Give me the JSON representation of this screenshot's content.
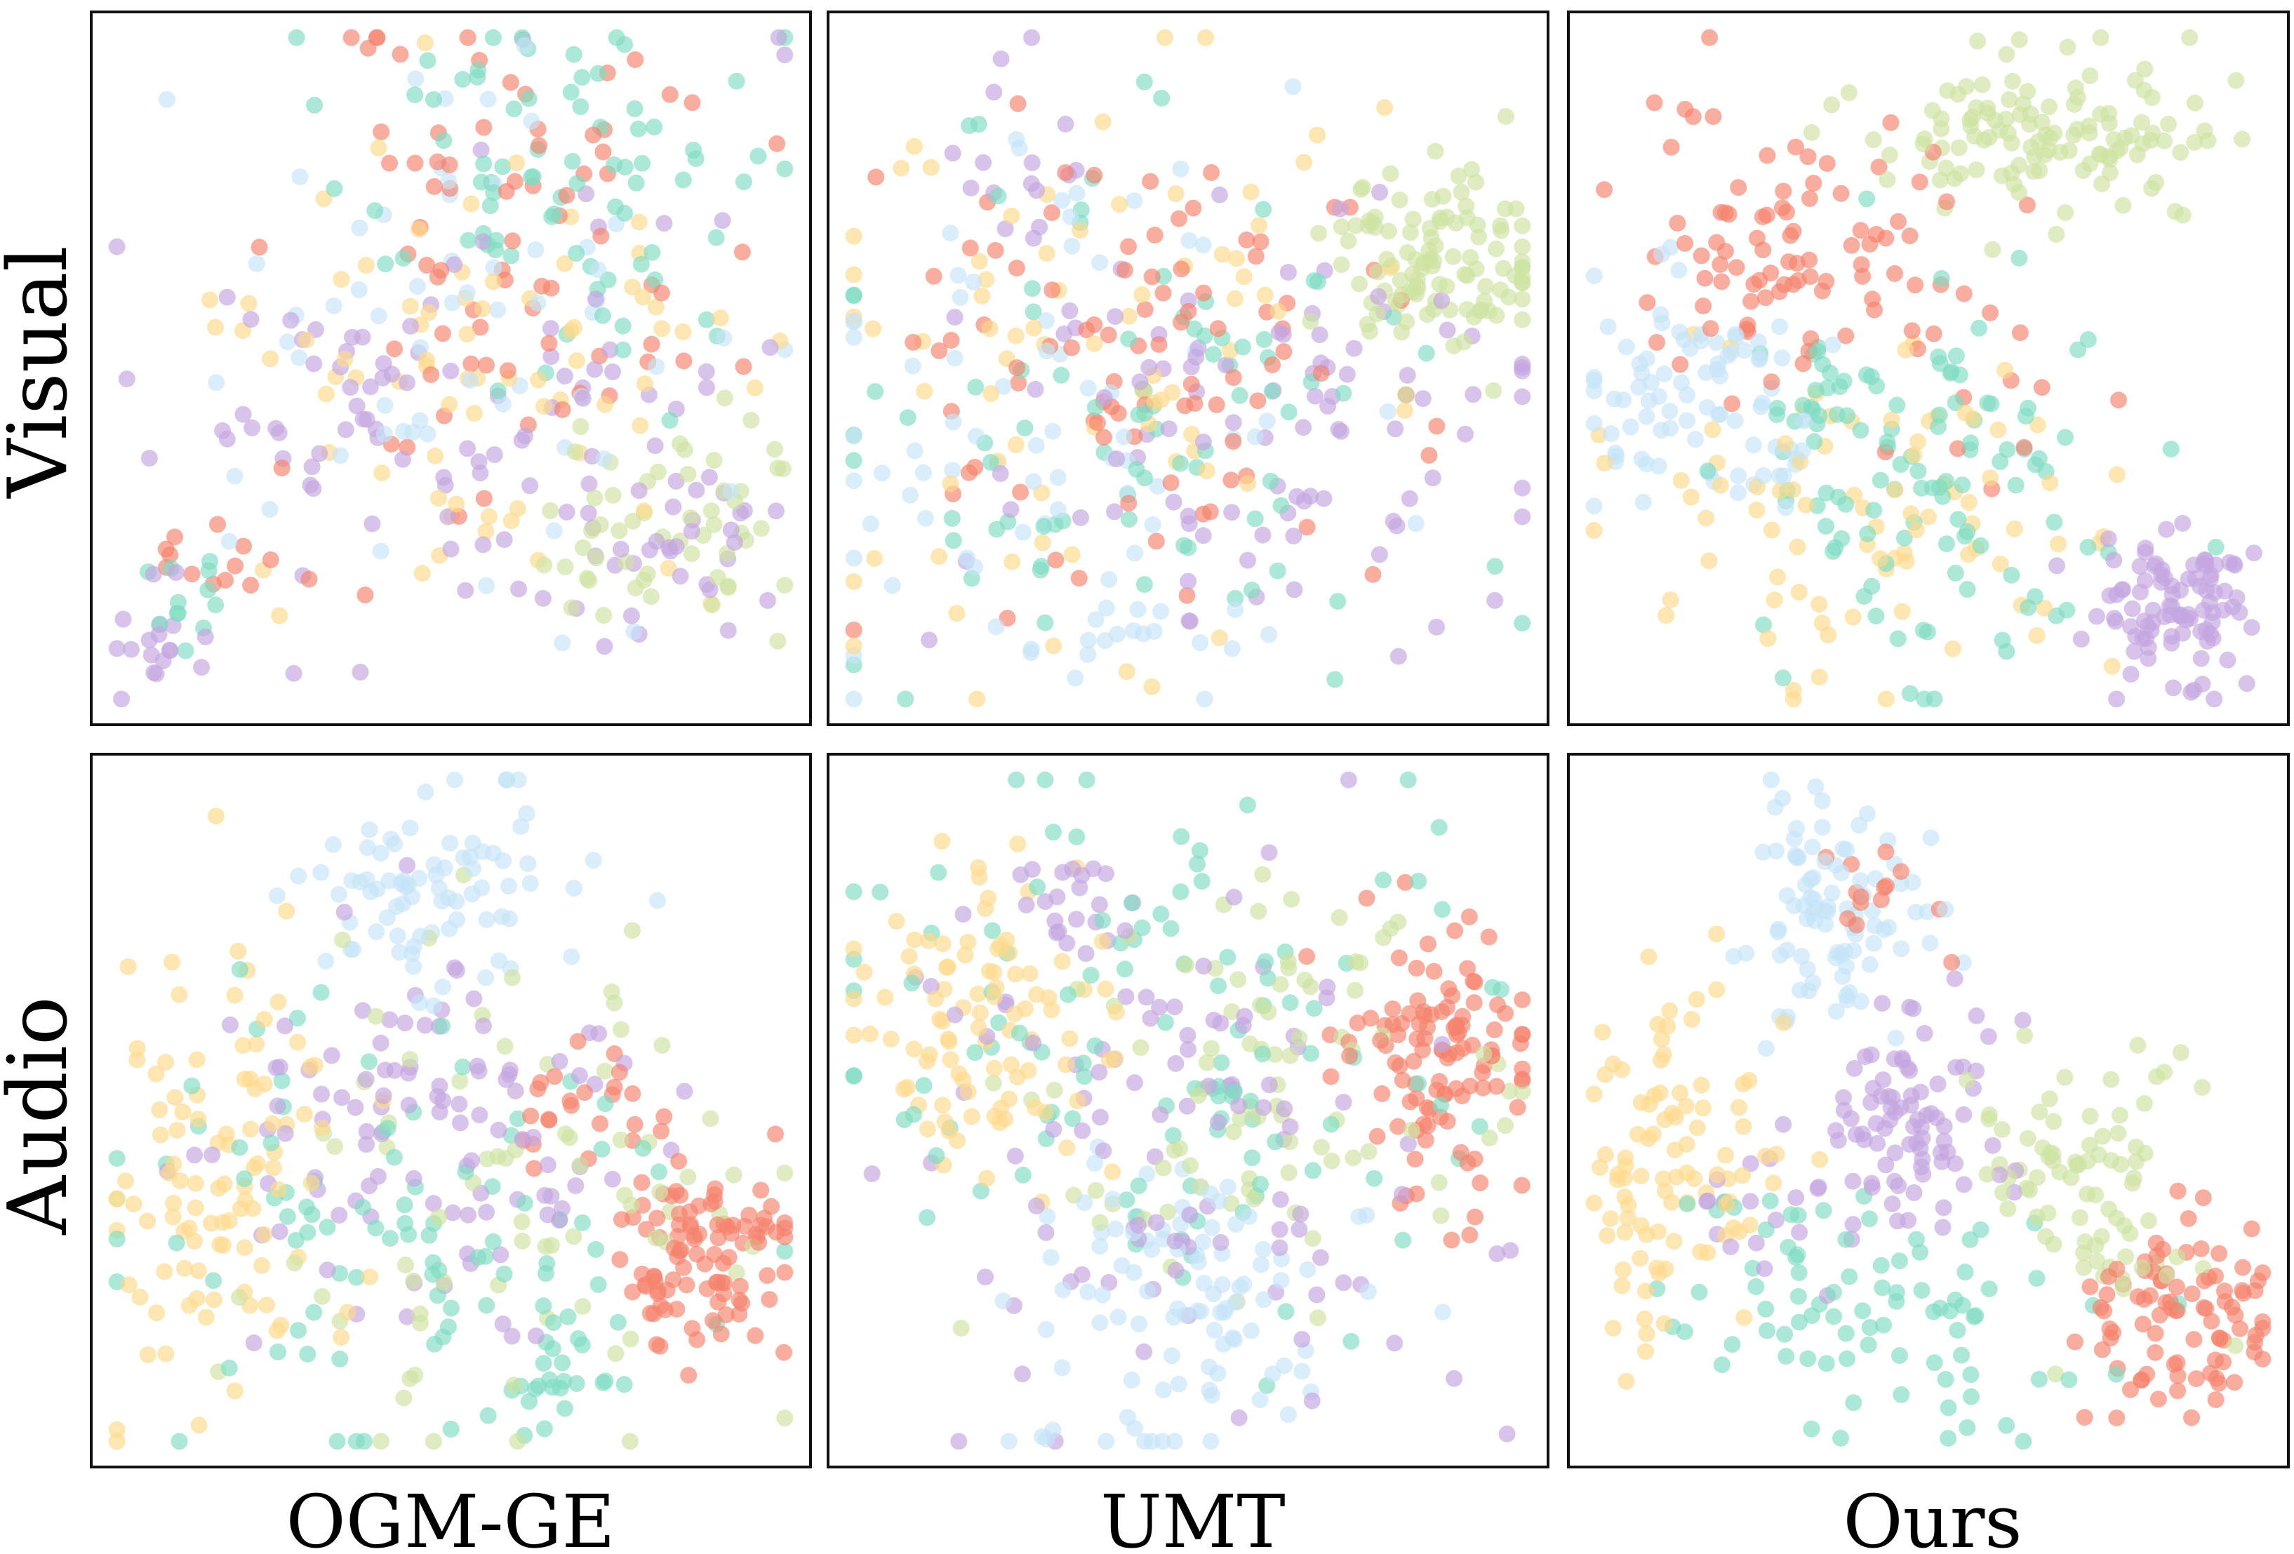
{
  "figure": {
    "row_labels": [
      "Visual",
      "Audio"
    ],
    "column_labels": [
      "OGM-GE",
      "UMT",
      "Ours"
    ]
  },
  "chart_data": {
    "type": "scatter",
    "xlim": [
      0,
      1
    ],
    "ylim": [
      0,
      1
    ],
    "grid": false,
    "legend": "none",
    "palette": {
      "red": "#f4826e",
      "green": "#cfe2a1",
      "teal": "#7fdcc2",
      "purple": "#c4a5e0",
      "yellow": "#fdd98a",
      "blue": "#c5e3f7"
    },
    "panels": [
      {
        "row": "Visual",
        "column": "OGM-GE",
        "seed": 11,
        "clusters": [
          {
            "color": "red",
            "cx": 0.6,
            "cy": 0.68,
            "sx": 0.16,
            "sy": 0.18,
            "n": 75
          },
          {
            "color": "green",
            "cx": 0.8,
            "cy": 0.26,
            "sx": 0.08,
            "sy": 0.08,
            "n": 55
          },
          {
            "color": "teal",
            "cx": 0.65,
            "cy": 0.78,
            "sx": 0.14,
            "sy": 0.14,
            "n": 80
          },
          {
            "color": "purple",
            "cx": 0.52,
            "cy": 0.42,
            "sx": 0.22,
            "sy": 0.18,
            "n": 95
          },
          {
            "color": "yellow",
            "cx": 0.52,
            "cy": 0.5,
            "sx": 0.18,
            "sy": 0.16,
            "n": 75
          },
          {
            "color": "blue",
            "cx": 0.5,
            "cy": 0.62,
            "sx": 0.2,
            "sy": 0.2,
            "n": 60
          }
        ],
        "extra": [
          {
            "color": "purple",
            "cx": 0.08,
            "cy": 0.1,
            "sx": 0.04,
            "sy": 0.05,
            "n": 18
          },
          {
            "color": "teal",
            "cx": 0.12,
            "cy": 0.18,
            "sx": 0.05,
            "sy": 0.05,
            "n": 12
          },
          {
            "color": "red",
            "cx": 0.18,
            "cy": 0.25,
            "sx": 0.06,
            "sy": 0.06,
            "n": 14
          },
          {
            "color": "purple",
            "cx": 0.82,
            "cy": 0.24,
            "sx": 0.08,
            "sy": 0.07,
            "n": 30
          }
        ]
      },
      {
        "row": "Visual",
        "column": "UMT",
        "seed": 23,
        "clusters": [
          {
            "color": "red",
            "cx": 0.42,
            "cy": 0.52,
            "sx": 0.2,
            "sy": 0.18,
            "n": 90
          },
          {
            "color": "green",
            "cx": 0.86,
            "cy": 0.64,
            "sx": 0.08,
            "sy": 0.07,
            "n": 110
          },
          {
            "color": "teal",
            "cx": 0.4,
            "cy": 0.45,
            "sx": 0.2,
            "sy": 0.2,
            "n": 85
          },
          {
            "color": "purple",
            "cx": 0.6,
            "cy": 0.38,
            "sx": 0.2,
            "sy": 0.18,
            "n": 95
          },
          {
            "color": "yellow",
            "cx": 0.3,
            "cy": 0.55,
            "sx": 0.2,
            "sy": 0.2,
            "n": 75
          },
          {
            "color": "blue",
            "cx": 0.3,
            "cy": 0.42,
            "sx": 0.2,
            "sy": 0.18,
            "n": 70
          }
        ],
        "extra": [
          {
            "color": "purple",
            "cx": 0.26,
            "cy": 0.8,
            "sx": 0.05,
            "sy": 0.08,
            "n": 16
          },
          {
            "color": "blue",
            "cx": 0.4,
            "cy": 0.12,
            "sx": 0.08,
            "sy": 0.05,
            "n": 16
          }
        ]
      },
      {
        "row": "Visual",
        "column": "Ours",
        "seed": 37,
        "clusters": [
          {
            "color": "red",
            "cx": 0.3,
            "cy": 0.7,
            "sx": 0.1,
            "sy": 0.1,
            "n": 80
          },
          {
            "color": "green",
            "cx": 0.68,
            "cy": 0.84,
            "sx": 0.13,
            "sy": 0.06,
            "n": 120
          },
          {
            "color": "teal",
            "cx": 0.52,
            "cy": 0.32,
            "sx": 0.14,
            "sy": 0.14,
            "n": 95
          },
          {
            "color": "purple",
            "cx": 0.86,
            "cy": 0.15,
            "sx": 0.06,
            "sy": 0.06,
            "n": 95
          },
          {
            "color": "yellow",
            "cx": 0.4,
            "cy": 0.28,
            "sx": 0.16,
            "sy": 0.12,
            "n": 85
          },
          {
            "color": "blue",
            "cx": 0.18,
            "cy": 0.45,
            "sx": 0.1,
            "sy": 0.09,
            "n": 85
          }
        ],
        "extra": [
          {
            "color": "teal",
            "cx": 0.34,
            "cy": 0.45,
            "sx": 0.05,
            "sy": 0.04,
            "n": 22
          },
          {
            "color": "red",
            "cx": 0.52,
            "cy": 0.52,
            "sx": 0.12,
            "sy": 0.12,
            "n": 20
          }
        ]
      },
      {
        "row": "Audio",
        "column": "OGM-GE",
        "seed": 51,
        "clusters": [
          {
            "color": "red",
            "cx": 0.86,
            "cy": 0.28,
            "sx": 0.06,
            "sy": 0.07,
            "n": 100
          },
          {
            "color": "green",
            "cx": 0.55,
            "cy": 0.35,
            "sx": 0.2,
            "sy": 0.2,
            "n": 75
          },
          {
            "color": "teal",
            "cx": 0.42,
            "cy": 0.28,
            "sx": 0.22,
            "sy": 0.16,
            "n": 95
          },
          {
            "color": "purple",
            "cx": 0.48,
            "cy": 0.45,
            "sx": 0.16,
            "sy": 0.14,
            "n": 105
          },
          {
            "color": "yellow",
            "cx": 0.18,
            "cy": 0.4,
            "sx": 0.1,
            "sy": 0.16,
            "n": 100
          },
          {
            "color": "blue",
            "cx": 0.48,
            "cy": 0.82,
            "sx": 0.1,
            "sy": 0.08,
            "n": 80
          }
        ],
        "extra": [
          {
            "color": "red",
            "cx": 0.68,
            "cy": 0.5,
            "sx": 0.05,
            "sy": 0.05,
            "n": 24
          },
          {
            "color": "teal",
            "cx": 0.65,
            "cy": 0.1,
            "sx": 0.04,
            "sy": 0.04,
            "n": 18
          }
        ]
      },
      {
        "row": "Audio",
        "column": "UMT",
        "seed": 67,
        "clusters": [
          {
            "color": "red",
            "cx": 0.86,
            "cy": 0.58,
            "sx": 0.07,
            "sy": 0.1,
            "n": 110
          },
          {
            "color": "green",
            "cx": 0.62,
            "cy": 0.56,
            "sx": 0.18,
            "sy": 0.16,
            "n": 85
          },
          {
            "color": "teal",
            "cx": 0.45,
            "cy": 0.6,
            "sx": 0.24,
            "sy": 0.18,
            "n": 115
          },
          {
            "color": "purple",
            "cx": 0.5,
            "cy": 0.46,
            "sx": 0.2,
            "sy": 0.2,
            "n": 105
          },
          {
            "color": "yellow",
            "cx": 0.18,
            "cy": 0.62,
            "sx": 0.1,
            "sy": 0.1,
            "n": 95
          },
          {
            "color": "blue",
            "cx": 0.5,
            "cy": 0.22,
            "sx": 0.12,
            "sy": 0.12,
            "n": 100
          }
        ],
        "extra": [
          {
            "color": "purple",
            "cx": 0.32,
            "cy": 0.84,
            "sx": 0.06,
            "sy": 0.05,
            "n": 20
          }
        ]
      },
      {
        "row": "Audio",
        "column": "Ours",
        "seed": 83,
        "clusters": [
          {
            "color": "red",
            "cx": 0.86,
            "cy": 0.2,
            "sx": 0.07,
            "sy": 0.08,
            "n": 90
          },
          {
            "color": "green",
            "cx": 0.72,
            "cy": 0.4,
            "sx": 0.1,
            "sy": 0.1,
            "n": 80
          },
          {
            "color": "teal",
            "cx": 0.4,
            "cy": 0.22,
            "sx": 0.16,
            "sy": 0.1,
            "n": 85
          },
          {
            "color": "purple",
            "cx": 0.48,
            "cy": 0.5,
            "sx": 0.06,
            "sy": 0.09,
            "n": 85
          },
          {
            "color": "yellow",
            "cx": 0.14,
            "cy": 0.42,
            "sx": 0.07,
            "sy": 0.14,
            "n": 95
          },
          {
            "color": "blue",
            "cx": 0.36,
            "cy": 0.8,
            "sx": 0.07,
            "sy": 0.09,
            "n": 90
          }
        ],
        "extra": [
          {
            "color": "red",
            "cx": 0.44,
            "cy": 0.78,
            "sx": 0.05,
            "sy": 0.06,
            "n": 14
          },
          {
            "color": "purple",
            "cx": 0.26,
            "cy": 0.35,
            "sx": 0.07,
            "sy": 0.06,
            "n": 18
          }
        ]
      }
    ]
  }
}
